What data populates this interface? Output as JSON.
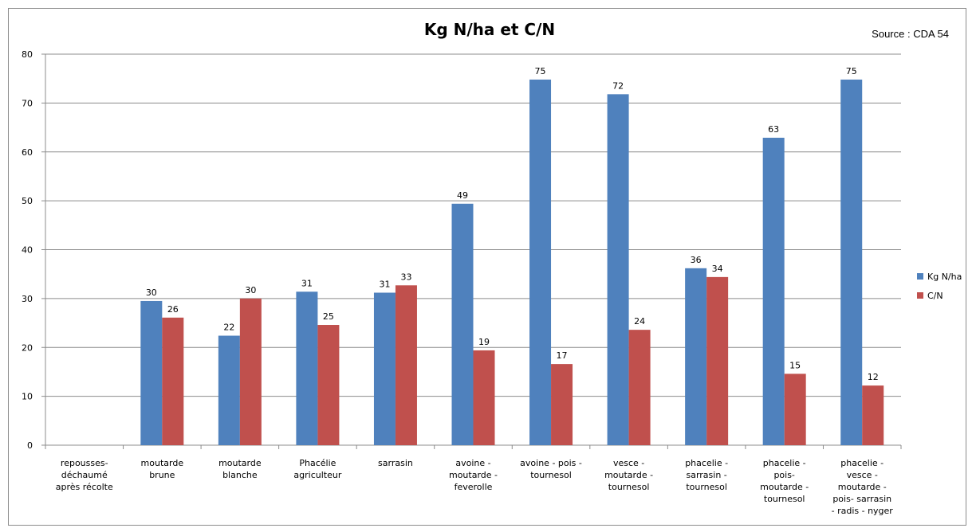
{
  "chart_data": {
    "type": "bar",
    "title": "Kg N/ha et C/N",
    "source": "Source : CDA 54",
    "ylim": [
      0,
      80
    ],
    "yticks": [
      0,
      10,
      20,
      30,
      40,
      50,
      60,
      70,
      80
    ],
    "grid": true,
    "legend_position": "right",
    "categories": [
      [
        "repousses-",
        "déchaumé",
        "après récolte"
      ],
      [
        "moutarde",
        "brune"
      ],
      [
        "moutarde",
        "blanche"
      ],
      [
        "Phacélie",
        "agriculteur"
      ],
      [
        "sarrasin"
      ],
      [
        "avoine -",
        "moutarde -",
        "feverolle"
      ],
      [
        "avoine - pois -",
        "tournesol"
      ],
      [
        "vesce -",
        "moutarde -",
        "tournesol"
      ],
      [
        "phacelie -",
        "sarrasin -",
        "tournesol"
      ],
      [
        "phacelie -",
        "pois-",
        "moutarde -",
        "tournesol"
      ],
      [
        "phacelie -",
        "vesce -",
        "moutarde -",
        "pois- sarrasin",
        "- radis - nyger"
      ]
    ],
    "series": [
      {
        "name": "Kg N/ha",
        "color": "#4f81bd",
        "values": [
          0,
          29.5,
          22.4,
          31.4,
          31.2,
          49.4,
          74.8,
          71.8,
          36.2,
          62.9,
          74.8
        ],
        "labels": [
          "",
          "30",
          "22",
          "31",
          "31",
          "49",
          "75",
          "72",
          "36",
          "63",
          "75"
        ]
      },
      {
        "name": "C/N",
        "color": "#c0504d",
        "values": [
          0,
          26.1,
          30.0,
          24.6,
          32.7,
          19.4,
          16.6,
          23.6,
          34.4,
          14.6,
          12.2
        ],
        "labels": [
          "",
          "26",
          "30",
          "25",
          "33",
          "19",
          "17",
          "24",
          "34",
          "15",
          "12"
        ]
      }
    ]
  }
}
